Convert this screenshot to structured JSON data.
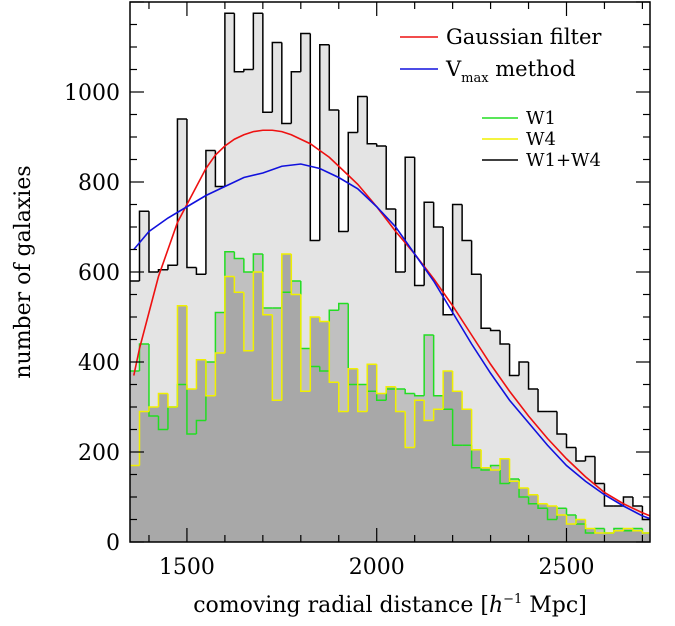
{
  "chart_data": {
    "type": "histogram",
    "title": "",
    "xlabel": "comoving radial distance",
    "xlabel_unit_prefix": "[",
    "xlabel_unit_h": "h",
    "xlabel_unit_exp": "−1",
    "xlabel_unit_rest": " Mpc]",
    "ylabel": "number of galaxies",
    "xlim": [
      1350,
      2720
    ],
    "ylim": [
      0,
      1200
    ],
    "xticks": [
      1500,
      2000,
      2500
    ],
    "yticks": [
      0,
      200,
      400,
      600,
      800,
      1000
    ],
    "bin_edges": [
      1350,
      1375,
      1400,
      1425,
      1450,
      1475,
      1500,
      1525,
      1550,
      1575,
      1600,
      1625,
      1650,
      1675,
      1700,
      1725,
      1750,
      1775,
      1800,
      1825,
      1850,
      1875,
      1900,
      1925,
      1950,
      1975,
      2000,
      2025,
      2050,
      2075,
      2100,
      2125,
      2150,
      2175,
      2200,
      2225,
      2250,
      2275,
      2300,
      2325,
      2350,
      2375,
      2400,
      2425,
      2450,
      2475,
      2500,
      2525,
      2550,
      2575,
      2600,
      2625,
      2650,
      2675,
      2700,
      2720
    ],
    "histograms": [
      {
        "name": "W1+W4",
        "color": "#000000",
        "fill": "#e4e4e4",
        "values": [
          580,
          735,
          600,
          605,
          615,
          940,
          610,
          595,
          870,
          790,
          1175,
          1045,
          1050,
          1175,
          955,
          1110,
          930,
          1045,
          1130,
          670,
          1105,
          960,
          690,
          910,
          990,
          885,
          880,
          740,
          600,
          855,
          570,
          755,
          700,
          505,
          750,
          670,
          595,
          475,
          470,
          440,
          370,
          400,
          340,
          290,
          290,
          240,
          210,
          180,
          190,
          130,
          80,
          80,
          100,
          80,
          50
        ]
      },
      {
        "name": "W1",
        "color": "#22dd22",
        "fill": "#c0c0c0",
        "values": [
          380,
          440,
          280,
          250,
          300,
          350,
          240,
          270,
          400,
          510,
          645,
          630,
          600,
          640,
          520,
          520,
          555,
          580,
          430,
          390,
          380,
          515,
          530,
          350,
          350,
          335,
          315,
          340,
          340,
          330,
          325,
          460,
          325,
          295,
          215,
          215,
          165,
          160,
          170,
          130,
          140,
          100,
          85,
          75,
          50,
          75,
          60,
          40,
          20,
          30,
          20,
          30,
          25,
          30,
          20
        ]
      },
      {
        "name": "W4",
        "color": "#f0f000",
        "fill": "#a8a8a8",
        "values": [
          170,
          290,
          300,
          330,
          300,
          525,
          340,
          405,
          325,
          420,
          590,
          555,
          425,
          600,
          505,
          315,
          640,
          550,
          335,
          500,
          490,
          355,
          290,
          385,
          290,
          395,
          330,
          345,
          290,
          210,
          315,
          270,
          295,
          380,
          335,
          295,
          205,
          165,
          160,
          185,
          135,
          120,
          105,
          85,
          80,
          60,
          40,
          50,
          30,
          20,
          20,
          25,
          30,
          25,
          20
        ]
      }
    ],
    "curves": [
      {
        "name": "Gaussian filter",
        "color": "#ee1111",
        "x": [
          1360,
          1375,
          1400,
          1425,
          1450,
          1475,
          1500,
          1525,
          1550,
          1575,
          1600,
          1625,
          1650,
          1675,
          1700,
          1725,
          1750,
          1775,
          1800,
          1825,
          1850,
          1875,
          1900,
          1925,
          1950,
          1975,
          2000,
          2050,
          2100,
          2150,
          2200,
          2250,
          2300,
          2350,
          2400,
          2450,
          2500,
          2550,
          2600,
          2650,
          2700,
          2720
        ],
        "y": [
          370,
          430,
          510,
          590,
          650,
          710,
          750,
          790,
          830,
          860,
          880,
          895,
          905,
          912,
          915,
          915,
          912,
          905,
          895,
          885,
          870,
          855,
          835,
          815,
          795,
          770,
          745,
          690,
          640,
          585,
          525,
          460,
          395,
          335,
          280,
          230,
          185,
          145,
          110,
          85,
          65,
          58
        ]
      },
      {
        "name": "V_max method",
        "color": "#1111dd",
        "x": [
          1360,
          1400,
          1450,
          1500,
          1550,
          1600,
          1650,
          1700,
          1750,
          1800,
          1850,
          1900,
          1950,
          2000,
          2050,
          2100,
          2150,
          2200,
          2250,
          2300,
          2350,
          2400,
          2450,
          2500,
          2550,
          2600,
          2650,
          2700,
          2720
        ],
        "y": [
          650,
          690,
          720,
          745,
          770,
          790,
          810,
          820,
          835,
          840,
          830,
          810,
          785,
          745,
          700,
          640,
          580,
          510,
          440,
          375,
          315,
          265,
          215,
          170,
          135,
          105,
          80,
          58,
          52
        ]
      }
    ],
    "legend_top": [
      {
        "label": "Gaussian filter",
        "color": "#ee1111"
      },
      {
        "label": "V",
        "sub": "max",
        "rest": " method",
        "color": "#1111dd"
      }
    ],
    "legend_bottom": [
      {
        "label": "W1",
        "color": "#22dd22"
      },
      {
        "label": "W4",
        "color": "#f0f000"
      },
      {
        "label": "W1+W4",
        "color": "#000000"
      }
    ],
    "grid": false,
    "legend_position": "top-right"
  }
}
